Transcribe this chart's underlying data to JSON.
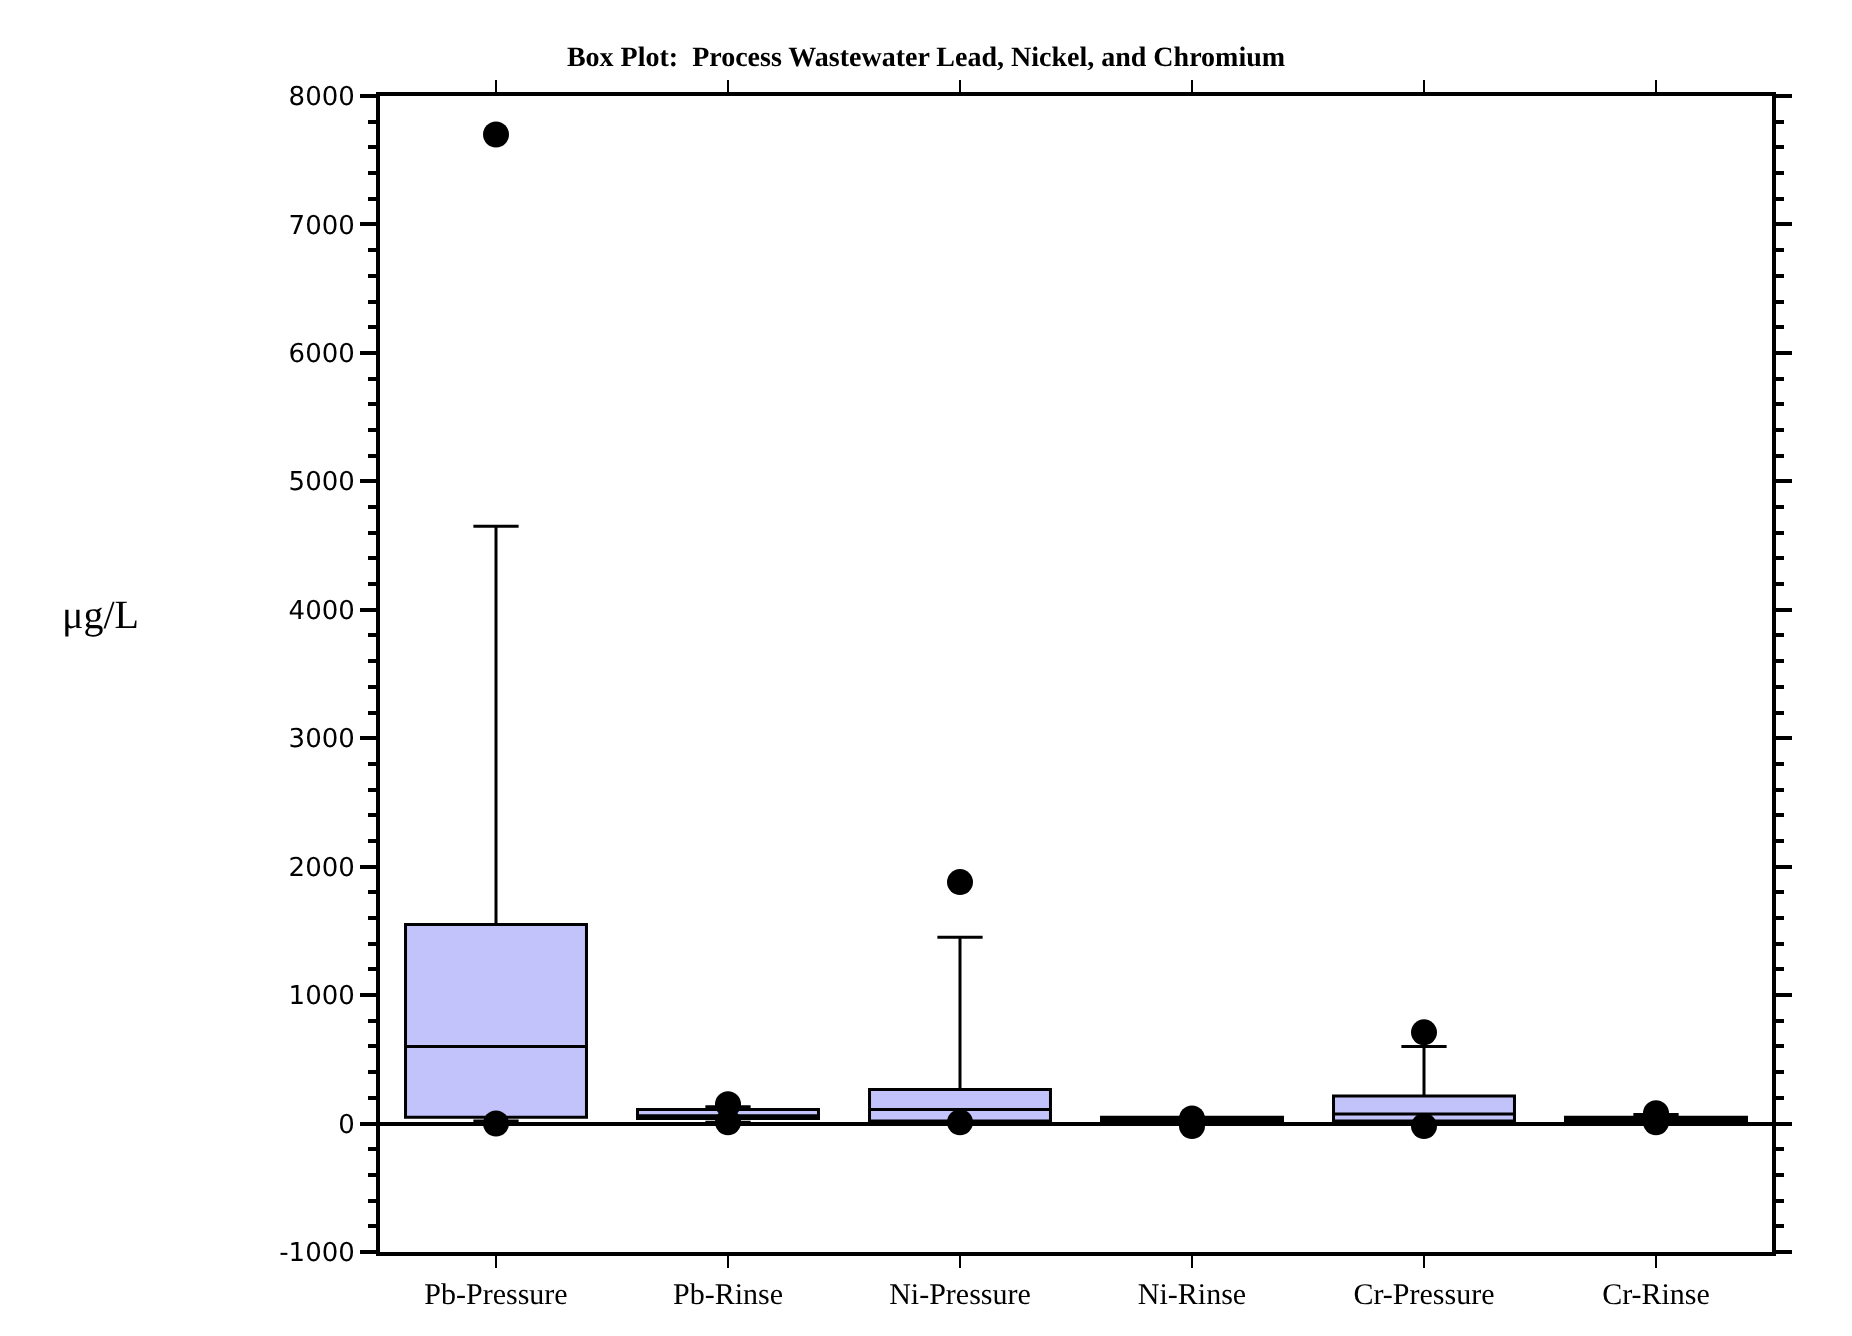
{
  "chart_data": {
    "type": "box",
    "title": "Box Plot:  Process Wastewater Lead, Nickel, and Chromium",
    "ylabel": "μg/L",
    "categories": [
      "Pb-Pressure",
      "Pb-Rinse",
      "Ni-Pressure",
      "Ni-Rinse",
      "Cr-Pressure",
      "Cr-Rinse"
    ],
    "color": "#c3c3fb",
    "boxes": [
      {
        "low": 20,
        "q1": 50,
        "median": 600,
        "q3": 1550,
        "high": 4650,
        "outliers": [
          7700,
          0
        ]
      },
      {
        "low": 10,
        "q1": 40,
        "median": 60,
        "q3": 110,
        "high": 130,
        "outliers": [
          150,
          10
        ]
      },
      {
        "low": 10,
        "q1": 20,
        "median": 110,
        "q3": 265,
        "high": 1450,
        "outliers": [
          1880,
          10
        ]
      },
      {
        "low": 5,
        "q1": 10,
        "median": 30,
        "q3": 50,
        "high": 50,
        "outliers": [
          40,
          -20
        ]
      },
      {
        "low": 10,
        "q1": 20,
        "median": 75,
        "q3": 215,
        "high": 600,
        "outliers": [
          710,
          -20
        ]
      },
      {
        "low": 5,
        "q1": 10,
        "median": 30,
        "q3": 50,
        "high": 70,
        "outliers": [
          80,
          10
        ]
      }
    ],
    "ylim": [
      -1000,
      8000
    ],
    "yticks": [
      -1000,
      0,
      1000,
      2000,
      3000,
      4000,
      5000,
      6000,
      7000,
      8000
    ],
    "marker": "circle"
  }
}
